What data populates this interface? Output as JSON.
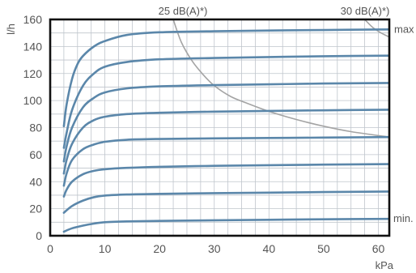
{
  "chart_data": {
    "type": "line",
    "title": "",
    "xlabel": "kPa",
    "ylabel": "l/h",
    "xlim": [
      0,
      62
    ],
    "ylim": [
      0,
      160
    ],
    "x_ticks": [
      0,
      10,
      20,
      30,
      40,
      50,
      60
    ],
    "y_ticks": [
      0,
      20,
      40,
      60,
      80,
      100,
      120,
      140,
      160
    ],
    "grid": true,
    "colors": {
      "series": "#5b87aa",
      "noise": "#a4a4a4"
    },
    "series": [
      {
        "x": [
          2.5,
          4,
          6,
          8,
          10,
          14,
          20,
          30,
          40,
          50,
          62
        ],
        "y": [
          3,
          5.5,
          7.5,
          9,
          10,
          10.6,
          11,
          11.4,
          11.8,
          12.2,
          12.5
        ]
      },
      {
        "x": [
          2.5,
          4,
          6,
          8,
          10,
          14,
          20,
          30,
          40,
          50,
          62
        ],
        "y": [
          17,
          22,
          26,
          28.5,
          29.7,
          30.5,
          31,
          31.5,
          31.9,
          32.3,
          32.7
        ]
      },
      {
        "x": [
          2.5,
          3,
          4,
          6,
          8,
          10,
          14,
          20,
          30,
          40,
          50,
          62
        ],
        "y": [
          29,
          34,
          40,
          45.5,
          48,
          49.2,
          50.2,
          51,
          51.7,
          52.2,
          52.6,
          53
        ]
      },
      {
        "x": [
          2.5,
          3,
          4,
          6,
          8,
          10,
          14,
          20,
          30,
          40,
          50,
          62
        ],
        "y": [
          37,
          46,
          56,
          64,
          67.5,
          69.5,
          71,
          71.6,
          72,
          72.3,
          72.6,
          73
        ]
      },
      {
        "x": [
          2.5,
          3,
          4,
          6,
          8,
          10,
          14,
          20,
          30,
          40,
          50,
          62
        ],
        "y": [
          46,
          56,
          68,
          80,
          85.5,
          88,
          90,
          91,
          91.8,
          92.3,
          92.8,
          93.2
        ]
      },
      {
        "x": [
          2.5,
          3,
          4,
          6,
          8,
          10,
          14,
          20,
          30,
          40,
          50,
          62
        ],
        "y": [
          55,
          66,
          80,
          95,
          102,
          106,
          109,
          110.5,
          111.4,
          112,
          112.6,
          113
        ]
      },
      {
        "x": [
          2.5,
          3,
          4,
          6,
          8,
          10,
          14,
          20,
          30,
          40,
          50,
          62
        ],
        "y": [
          65,
          76,
          93,
          111,
          120,
          125,
          128.5,
          130.5,
          131.5,
          132.2,
          132.8,
          133.2
        ]
      },
      {
        "x": [
          2.5,
          3,
          4,
          5,
          6,
          8,
          10,
          14,
          20,
          30,
          40,
          50,
          62
        ],
        "y": [
          81,
          97,
          116,
          127,
          133,
          140,
          144,
          148.5,
          150.5,
          151.3,
          151.8,
          152.2,
          152.6
        ]
      }
    ],
    "noise_curves": [
      {
        "label": "25 dB(A)*)",
        "x": [
          22.5,
          24,
          26,
          28,
          30,
          33,
          36,
          40,
          45,
          50,
          55,
          62
        ],
        "y": [
          160,
          143,
          129,
          119,
          111,
          103,
          98,
          92,
          86,
          81,
          77,
          73
        ]
      },
      {
        "label": "30 dB(A)*)",
        "x": [
          57.5,
          59,
          60.5,
          62
        ],
        "y": [
          160,
          154,
          150,
          147
        ]
      }
    ],
    "annotations": [
      "max",
      "min."
    ]
  }
}
